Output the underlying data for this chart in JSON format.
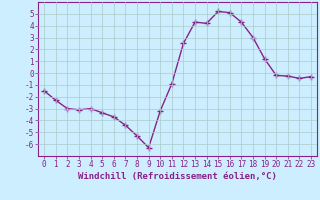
{
  "x": [
    0,
    1,
    2,
    3,
    4,
    5,
    6,
    7,
    8,
    9,
    10,
    11,
    12,
    13,
    14,
    15,
    16,
    17,
    18,
    19,
    20,
    21,
    22,
    23
  ],
  "y": [
    -1.5,
    -2.3,
    -3.0,
    -3.1,
    -3.0,
    -3.35,
    -3.7,
    -4.4,
    -5.3,
    -6.3,
    -3.2,
    -0.9,
    2.5,
    4.3,
    4.2,
    5.2,
    5.1,
    4.3,
    3.0,
    1.2,
    -0.2,
    -0.25,
    -0.45,
    -0.3
  ],
  "line_color": "#882288",
  "marker": "+",
  "marker_size": 4,
  "marker_lw": 1.0,
  "linewidth": 1.0,
  "bg_color": "#cceeff",
  "grid_color": "#aacccc",
  "xlabel": "Windchill (Refroidissement éolien,°C)",
  "xlim": [
    -0.5,
    23.5
  ],
  "ylim": [
    -7,
    6
  ],
  "yticks": [
    -6,
    -5,
    -4,
    -3,
    -2,
    -1,
    0,
    1,
    2,
    3,
    4,
    5
  ],
  "xticks": [
    0,
    1,
    2,
    3,
    4,
    5,
    6,
    7,
    8,
    9,
    10,
    11,
    12,
    13,
    14,
    15,
    16,
    17,
    18,
    19,
    20,
    21,
    22,
    23
  ],
  "tick_color": "#882288",
  "label_fontsize": 6.5,
  "tick_fontsize": 5.5
}
